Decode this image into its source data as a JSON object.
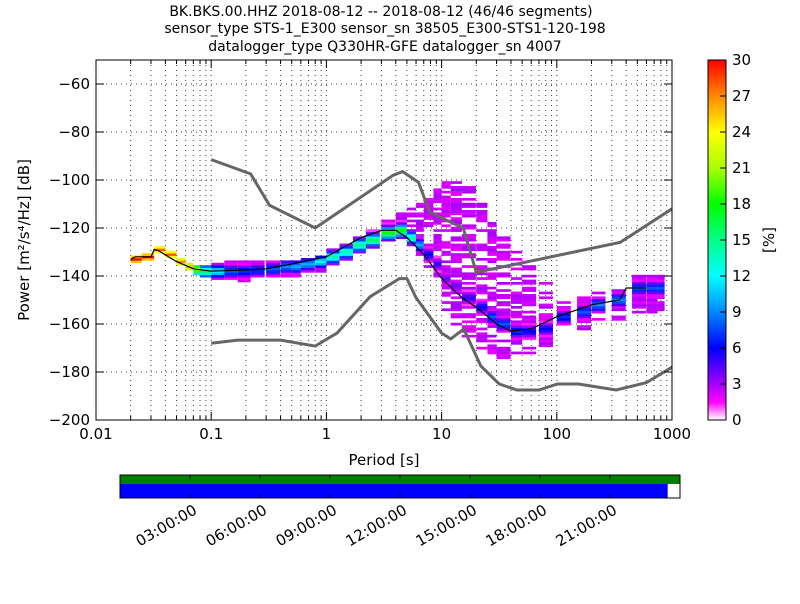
{
  "title": {
    "line1": "BK.BKS.00.HHZ   2018-08-12 -- 2018-08-12  (46/46 segments)",
    "line2": "sensor_type STS-1_E300 sensor_sn 38505_E300-STS1-120-198",
    "line3": "datalogger_type Q330HR-GFE datalogger_sn 4007"
  },
  "chart_data": {
    "type": "heatmap",
    "xlabel": "Period [s]",
    "ylabel": "Power [m²/s⁴/Hz] [dB]",
    "xscale": "log",
    "xlim": [
      0.01,
      1000
    ],
    "ylim": [
      -200,
      -50
    ],
    "grid": true,
    "x_ticks": [
      {
        "v": 0.01,
        "label": "0.01"
      },
      {
        "v": 0.1,
        "label": "0.1"
      },
      {
        "v": 1,
        "label": "1"
      },
      {
        "v": 10,
        "label": "10"
      },
      {
        "v": 100,
        "label": "100"
      },
      {
        "v": 1000,
        "label": "1000"
      }
    ],
    "y_ticks": [
      {
        "v": -60,
        "label": "−60"
      },
      {
        "v": -80,
        "label": "−80"
      },
      {
        "v": -100,
        "label": "−100"
      },
      {
        "v": -120,
        "label": "−120"
      },
      {
        "v": -140,
        "label": "−140"
      },
      {
        "v": -160,
        "label": "−160"
      },
      {
        "v": -180,
        "label": "−180"
      },
      {
        "v": -200,
        "label": "−200"
      }
    ],
    "nhnm": [
      [
        0.1,
        -91.5
      ],
      [
        0.22,
        -97.4
      ],
      [
        0.32,
        -110.5
      ],
      [
        0.8,
        -120
      ],
      [
        3.8,
        -98
      ],
      [
        4.6,
        -96.5
      ],
      [
        6.3,
        -101
      ],
      [
        7.9,
        -113.5
      ],
      [
        15.4,
        -120
      ],
      [
        20,
        -138.5
      ],
      [
        354.8,
        -126
      ],
      [
        1000,
        -112
      ]
    ],
    "nlnm": [
      [
        0.1,
        -168
      ],
      [
        0.17,
        -166.7
      ],
      [
        0.4,
        -166.7
      ],
      [
        0.8,
        -169.2
      ],
      [
        1.24,
        -163.7
      ],
      [
        2.4,
        -148.6
      ],
      [
        4.3,
        -141.1
      ],
      [
        5,
        -141.1
      ],
      [
        6,
        -149
      ],
      [
        10,
        -163.8
      ],
      [
        12,
        -166.2
      ],
      [
        15.6,
        -162.1
      ],
      [
        21.9,
        -177.5
      ],
      [
        31.6,
        -185
      ],
      [
        45,
        -187.5
      ],
      [
        70,
        -187.5
      ],
      [
        101,
        -185
      ],
      [
        154,
        -185
      ],
      [
        328,
        -187.5
      ],
      [
        600,
        -184.4
      ],
      [
        1000,
        -178
      ]
    ],
    "median": [
      [
        0.02,
        -133
      ],
      [
        0.022,
        -132
      ],
      [
        0.03,
        -132
      ],
      [
        0.032,
        -129
      ],
      [
        0.035,
        -129.5
      ],
      [
        0.05,
        -134
      ],
      [
        0.07,
        -137
      ],
      [
        0.1,
        -138
      ],
      [
        0.2,
        -137.5
      ],
      [
        0.3,
        -137
      ],
      [
        0.5,
        -135
      ],
      [
        1,
        -132
      ],
      [
        2,
        -124
      ],
      [
        3,
        -121
      ],
      [
        4,
        -121
      ],
      [
        5,
        -124
      ],
      [
        7,
        -131
      ],
      [
        10,
        -141
      ],
      [
        15,
        -149
      ],
      [
        20,
        -153
      ],
      [
        30,
        -160
      ],
      [
        40,
        -163
      ],
      [
        60,
        -162
      ],
      [
        100,
        -157
      ],
      [
        200,
        -152
      ],
      [
        350,
        -150
      ],
      [
        400,
        -145
      ],
      [
        600,
        -145
      ]
    ],
    "histogram_columns": [
      {
        "p": 0.02,
        "med": -133,
        "lo": -134,
        "hi": -132,
        "peak": 30
      },
      {
        "p": 0.025,
        "med": -132,
        "lo": -133,
        "hi": -131,
        "peak": 30
      },
      {
        "p": 0.03,
        "med": -132,
        "lo": -133,
        "hi": -131,
        "peak": 30
      },
      {
        "p": 0.032,
        "med": -129,
        "lo": -130,
        "hi": -128,
        "peak": 28
      },
      {
        "p": 0.04,
        "med": -131,
        "lo": -132,
        "hi": -130,
        "peak": 28
      },
      {
        "p": 0.05,
        "med": -134,
        "lo": -135,
        "hi": -133,
        "peak": 27
      },
      {
        "p": 0.06,
        "med": -136,
        "lo": -137,
        "hi": -135,
        "peak": 26
      },
      {
        "p": 0.07,
        "med": -137,
        "lo": -139,
        "hi": -136,
        "peak": 22
      },
      {
        "p": 0.08,
        "med": -138,
        "lo": -140,
        "hi": -136,
        "peak": 16
      },
      {
        "p": 0.1,
        "med": -138,
        "lo": -141,
        "hi": -135,
        "peak": 12
      },
      {
        "p": 0.13,
        "med": -138,
        "lo": -142,
        "hi": -134,
        "peak": 8
      },
      {
        "p": 0.17,
        "med": -138,
        "lo": -142,
        "hi": -134,
        "peak": 7
      },
      {
        "p": 0.22,
        "med": -137.5,
        "lo": -142,
        "hi": -134,
        "peak": 7
      },
      {
        "p": 0.3,
        "med": -137,
        "lo": -141,
        "hi": -134,
        "peak": 8
      },
      {
        "p": 0.4,
        "med": -136,
        "lo": -141,
        "hi": -134,
        "peak": 9
      },
      {
        "p": 0.5,
        "med": -136,
        "lo": -140,
        "hi": -134,
        "peak": 10
      },
      {
        "p": 0.6,
        "med": -135,
        "lo": -139,
        "hi": -133,
        "peak": 10
      },
      {
        "p": 0.8,
        "med": -134,
        "lo": -138,
        "hi": -132,
        "peak": 12
      },
      {
        "p": 1,
        "med": -132,
        "lo": -135,
        "hi": -129,
        "peak": 14
      },
      {
        "p": 1.3,
        "med": -130,
        "lo": -133,
        "hi": -127,
        "peak": 14
      },
      {
        "p": 1.7,
        "med": -127,
        "lo": -130,
        "hi": -124,
        "peak": 15
      },
      {
        "p": 2.2,
        "med": -125,
        "lo": -128,
        "hi": -120,
        "peak": 16
      },
      {
        "p": 3,
        "med": -122,
        "lo": -125,
        "hi": -117,
        "peak": 18
      },
      {
        "p": 4,
        "med": -121,
        "lo": -124,
        "hi": -114,
        "peak": 18
      },
      {
        "p": 5,
        "med": -124,
        "lo": -127,
        "hi": -112,
        "peak": 14
      },
      {
        "p": 6,
        "med": -127,
        "lo": -131,
        "hi": -110,
        "peak": 10
      },
      {
        "p": 7,
        "med": -131,
        "lo": -136,
        "hi": -106,
        "peak": 6
      },
      {
        "p": 8.5,
        "med": -135,
        "lo": -140,
        "hi": -104,
        "peak": 5
      },
      {
        "p": 10,
        "med": -141,
        "lo": -155,
        "hi": -101,
        "peak": 4
      },
      {
        "p": 12,
        "med": -144,
        "lo": -160,
        "hi": -101,
        "peak": 4
      },
      {
        "p": 15,
        "med": -149,
        "lo": -165,
        "hi": -103,
        "peak": 5
      },
      {
        "p": 20,
        "med": -153,
        "lo": -170,
        "hi": -110,
        "peak": 6
      },
      {
        "p": 25,
        "med": -157,
        "lo": -173,
        "hi": -118,
        "peak": 8
      },
      {
        "p": 30,
        "med": -160,
        "lo": -174,
        "hi": -124,
        "peak": 8
      },
      {
        "p": 40,
        "med": -163,
        "lo": -173,
        "hi": -130,
        "peak": 7
      },
      {
        "p": 50,
        "med": -163,
        "lo": -172,
        "hi": -136,
        "peak": 6
      },
      {
        "p": 70,
        "med": -162,
        "lo": -169,
        "hi": -142,
        "peak": 6
      },
      {
        "p": 100,
        "med": -157,
        "lo": -164,
        "hi": -148,
        "peak": 7
      },
      {
        "p": 150,
        "med": -155,
        "lo": -162,
        "hi": -148,
        "peak": 8
      },
      {
        "p": 200,
        "med": -152,
        "lo": -160,
        "hi": -146,
        "peak": 9
      },
      {
        "p": 300,
        "med": -150,
        "lo": -158,
        "hi": -146,
        "peak": 9
      },
      {
        "p": 450,
        "med": -145,
        "lo": -155,
        "hi": -140,
        "peak": 8
      },
      {
        "p": 600,
        "med": -145,
        "lo": -155,
        "hi": -139,
        "peak": 8
      },
      {
        "p": 750,
        "med": -145,
        "lo": -155,
        "hi": -139,
        "peak": 8
      }
    ],
    "colorbar": {
      "label": "[%]",
      "range": [
        0,
        30
      ],
      "ticks": [
        "0",
        "3",
        "6",
        "9",
        "12",
        "15",
        "18",
        "21",
        "24",
        "27",
        "30"
      ],
      "stops": [
        [
          0,
          "#ffffff"
        ],
        [
          1.5,
          "#ff00ff"
        ],
        [
          3.5,
          "#8800ff"
        ],
        [
          6,
          "#0000ff"
        ],
        [
          9,
          "#0088ff"
        ],
        [
          12,
          "#00ffff"
        ],
        [
          15,
          "#00ff88"
        ],
        [
          18,
          "#00ff00"
        ],
        [
          21,
          "#aaff00"
        ],
        [
          24,
          "#ffff00"
        ],
        [
          27,
          "#ff8800"
        ],
        [
          30,
          "#ff0000"
        ]
      ]
    },
    "coverage": {
      "ticks": [
        "03:00:00",
        "06:00:00",
        "09:00:00",
        "12:00:00",
        "15:00:00",
        "18:00:00",
        "21:00:00"
      ],
      "data_fraction": 0.978,
      "used_fraction": 1.0,
      "used_color": "#008000",
      "data_color": "#0000ff"
    },
    "model_color": "#666666",
    "median_color": "#000000"
  }
}
